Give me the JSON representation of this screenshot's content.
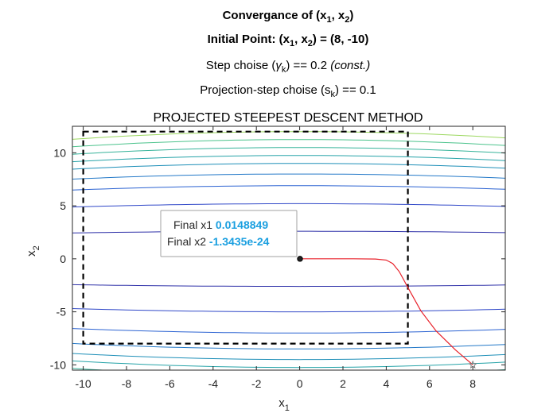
{
  "colors": {
    "background": "#ffffff",
    "axis": "#262626",
    "trajectory": "#e8212a",
    "boundary": "#000000",
    "datatip_value": "#1a9fe0",
    "datatip_border": "#a0a0a0",
    "contour_low": "#2e1c6e",
    "contour_high": "#e8e048"
  },
  "titles": {
    "line1": {
      "prefix": "Convergance of (x",
      "sub1": "1",
      "mid": ", x",
      "sub2": "2",
      "suffix": ")"
    },
    "line2": {
      "prefix": "Initial Point: (x",
      "sub1": "1",
      "mid": ", x",
      "sub2": "2",
      "suffix": ") = (8, -10)"
    },
    "line3": {
      "prefix": "Step choise (",
      "gamma": "γ",
      "sub": "k",
      "mid": ") == 0.2  ",
      "italic": "(const.)"
    },
    "line4": {
      "prefix": "Projection-step choise (s",
      "sub": "k",
      "suffix": ") == 0.1"
    },
    "line5": "PROJECTED STEEPEST DESCENT METHOD"
  },
  "datatip": {
    "label1": "Final x1",
    "value1": "0.0148849",
    "label2": "Final x2",
    "value2": "-1.3435e-24"
  },
  "chart_data": {
    "type": "line",
    "xlabel": {
      "base": "x",
      "sub": "1"
    },
    "ylabel": {
      "base": "x",
      "sub": "2"
    },
    "xlim": [
      -10.5,
      9.5
    ],
    "ylim": [
      -10.5,
      12.5
    ],
    "xticks": [
      -10,
      -8,
      -6,
      -4,
      -2,
      0,
      2,
      4,
      6,
      8
    ],
    "yticks": [
      -10,
      -5,
      0,
      5,
      10
    ],
    "grid": false,
    "contour_levels": [
      {
        "level": -12.0,
        "color": "#64d07a"
      },
      {
        "level": -11.5,
        "color": "#4cc38c"
      },
      {
        "level": -11.0,
        "color": "#36b39a"
      },
      {
        "level": -10.25,
        "color": "#26a3a8"
      },
      {
        "level": -9.5,
        "color": "#1e8fb8"
      },
      {
        "level": -8.5,
        "color": "#2479c8"
      },
      {
        "level": -7.0,
        "color": "#2c63d2"
      },
      {
        "level": -5.0,
        "color": "#3048c8"
      },
      {
        "level": -2.6,
        "color": "#2e30a8"
      },
      {
        "level": 2.6,
        "color": "#2e30a8"
      },
      {
        "level": 5.2,
        "color": "#3048c8"
      },
      {
        "level": 6.9,
        "color": "#2c63d2"
      },
      {
        "level": 8.0,
        "color": "#2479c8"
      },
      {
        "level": 9.0,
        "color": "#1e8fb8"
      },
      {
        "level": 9.75,
        "color": "#26a3a8"
      },
      {
        "level": 10.5,
        "color": "#36b39a"
      },
      {
        "level": 11.25,
        "color": "#4cc38c"
      },
      {
        "level": 12.0,
        "color": "#9cd860"
      }
    ],
    "constraint_box": {
      "x": [
        -10,
        5
      ],
      "y": [
        -8,
        12
      ]
    },
    "trajectory": {
      "x": [
        8,
        7.2,
        6.3,
        5.6,
        5.0,
        4.6,
        4.3,
        4.0,
        3.5,
        2.5,
        1.0,
        0.0149
      ],
      "y": [
        -10,
        -8.6,
        -6.8,
        -4.9,
        -2.7,
        -1.2,
        -0.45,
        -0.12,
        -0.02,
        0,
        0,
        0
      ]
    },
    "start_point": {
      "x": 8,
      "y": -10
    },
    "end_point": {
      "x": 0.0149,
      "y": 0
    }
  }
}
